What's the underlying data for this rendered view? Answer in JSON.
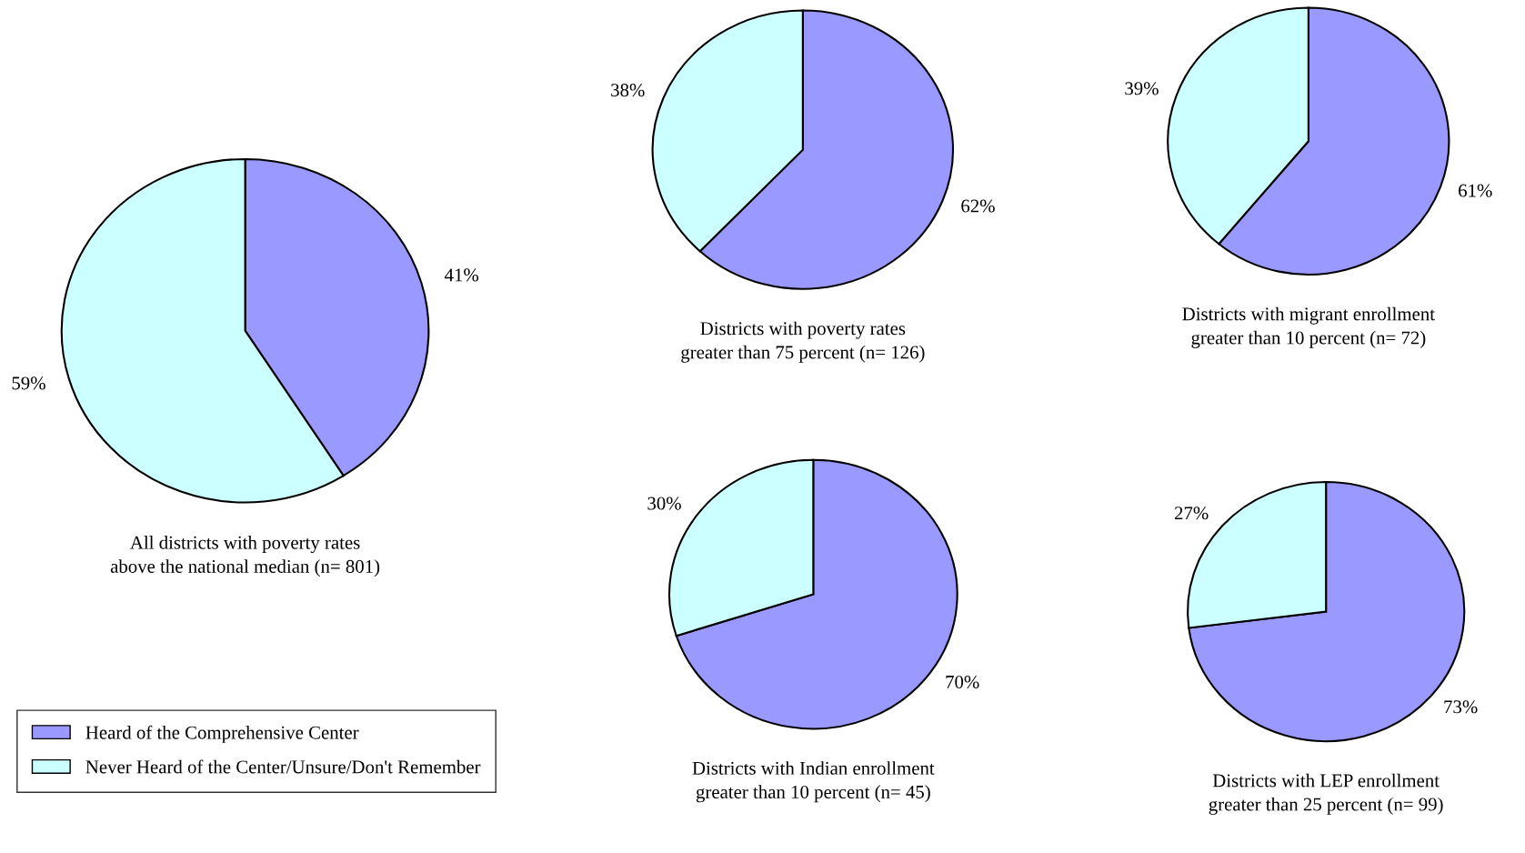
{
  "chart_data": [
    {
      "type": "pie",
      "title": "All districts with poverty rates\nabove the national median (n= 801)",
      "categories": [
        "Heard of the Comprehensive Center",
        "Never Heard of the Center/Unsure/Don't Remember"
      ],
      "values": [
        41,
        59
      ],
      "value_labels": [
        "41%",
        "59%"
      ],
      "colors": [
        "#9999ff",
        "#ccffff"
      ],
      "legend": "bottom left"
    },
    {
      "type": "pie",
      "title": "Districts with poverty rates\ngreater than 75 percent (n= 126)",
      "categories": [
        null,
        null
      ],
      "values": [
        62,
        38
      ],
      "value_labels": [
        "62%",
        "38%"
      ],
      "colors": [
        "#9999ff",
        "#ccffff"
      ]
    },
    {
      "type": "pie",
      "title": "Districts with migrant enrollment\ngreater than 10 percent (n= 72)",
      "categories": [
        null,
        null
      ],
      "values": [
        61,
        39
      ],
      "value_labels": [
        "61%",
        "39%"
      ],
      "colors": [
        "#9999ff",
        "#ccffff"
      ]
    },
    {
      "type": "pie",
      "title": "Districts with Indian enrollment\ngreater than 10 percent (n= 45)",
      "categories": [
        null,
        null
      ],
      "values": [
        70,
        30
      ],
      "value_labels": [
        "70%",
        "30%"
      ],
      "colors": [
        "#9999ff",
        "#ccffff"
      ]
    },
    {
      "type": "pie",
      "title": "Districts with LEP enrollment\ngreater than 25 percent (n= 99)",
      "categories": [
        null,
        null
      ],
      "values": [
        73,
        27
      ],
      "value_labels": [
        "73%",
        "27%"
      ],
      "colors": [
        "#9999ff",
        "#ccffff"
      ]
    }
  ]
}
